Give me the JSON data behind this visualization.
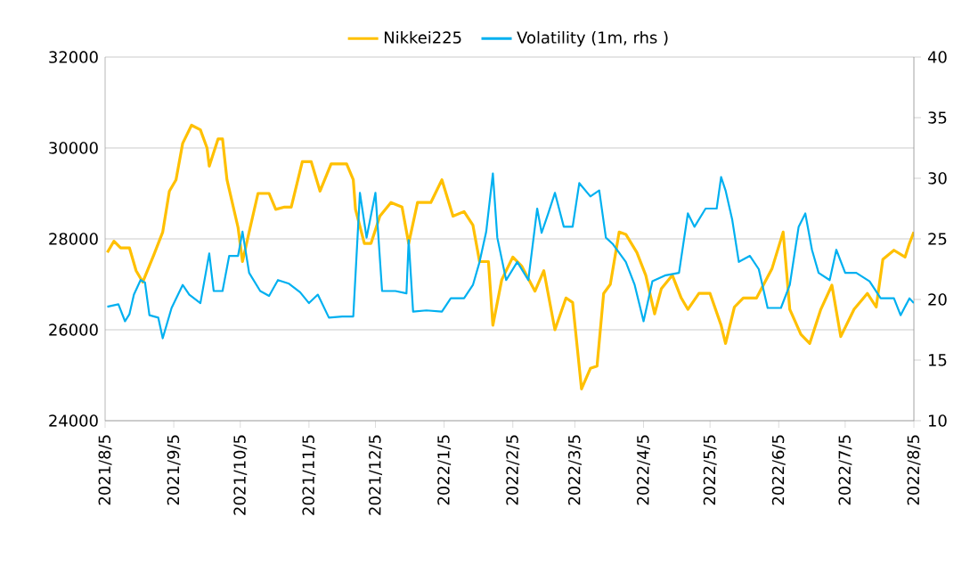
{
  "chart_data": {
    "type": "line",
    "xlim": [
      "2021-08-05",
      "2022-08-05"
    ],
    "xticks": [
      {
        "value": "2021-08-05",
        "label": "2021/8/5"
      },
      {
        "value": "2021-09-05",
        "label": "2021/9/5"
      },
      {
        "value": "2021-10-05",
        "label": "2021/10/5"
      },
      {
        "value": "2021-11-05",
        "label": "2021/11/5"
      },
      {
        "value": "2021-12-05",
        "label": "2021/12/5"
      },
      {
        "value": "2022-01-05",
        "label": "2022/1/5"
      },
      {
        "value": "2022-02-05",
        "label": "2022/2/5"
      },
      {
        "value": "2022-03-05",
        "label": "2022/3/5"
      },
      {
        "value": "2022-04-05",
        "label": "2022/4/5"
      },
      {
        "value": "2022-05-05",
        "label": "2022/5/5"
      },
      {
        "value": "2022-06-05",
        "label": "2022/6/5"
      },
      {
        "value": "2022-07-05",
        "label": "2022/7/5"
      },
      {
        "value": "2022-08-05",
        "label": "2022/8/5"
      }
    ],
    "ylim": [
      24000,
      32000
    ],
    "yticks": [
      24000,
      26000,
      28000,
      30000,
      32000
    ],
    "y2lim": [
      10,
      40
    ],
    "y2ticks": [
      10,
      15,
      20,
      25,
      30,
      35,
      40
    ],
    "grid": "y",
    "legend": "top",
    "line_style": "solid",
    "marker": "none",
    "series": [
      {
        "name": "Nikkei225",
        "color": "#ffc000",
        "axis": "y",
        "x": [
          "2021-08-06",
          "2021-08-09",
          "2021-08-12",
          "2021-08-16",
          "2021-08-19",
          "2021-08-22",
          "2021-08-27",
          "2021-08-31",
          "2021-09-03",
          "2021-09-06",
          "2021-09-09",
          "2021-09-13",
          "2021-09-17",
          "2021-09-20",
          "2021-09-21",
          "2021-09-25",
          "2021-09-27",
          "2021-09-29",
          "2021-10-04",
          "2021-10-06",
          "2021-10-09",
          "2021-10-13",
          "2021-10-18",
          "2021-10-21",
          "2021-10-25",
          "2021-10-28",
          "2021-11-02",
          "2021-11-06",
          "2021-11-10",
          "2021-11-15",
          "2021-11-22",
          "2021-11-25",
          "2021-11-26",
          "2021-11-30",
          "2021-12-03",
          "2021-12-07",
          "2021-12-12",
          "2021-12-17",
          "2021-12-20",
          "2021-12-24",
          "2021-12-30",
          "2022-01-04",
          "2022-01-09",
          "2022-01-14",
          "2022-01-18",
          "2022-01-21",
          "2022-01-25",
          "2022-01-27",
          "2022-01-31",
          "2022-02-05",
          "2022-02-09",
          "2022-02-15",
          "2022-02-19",
          "2022-02-24",
          "2022-03-01",
          "2022-03-04",
          "2022-03-08",
          "2022-03-12",
          "2022-03-15",
          "2022-03-18",
          "2022-03-21",
          "2022-03-25",
          "2022-03-28",
          "2022-04-02",
          "2022-04-06",
          "2022-04-10",
          "2022-04-13",
          "2022-04-18",
          "2022-04-22",
          "2022-04-25",
          "2022-04-30",
          "2022-05-05",
          "2022-05-10",
          "2022-05-12",
          "2022-05-16",
          "2022-05-20",
          "2022-05-26",
          "2022-06-02",
          "2022-06-07",
          "2022-06-10",
          "2022-06-15",
          "2022-06-19",
          "2022-06-24",
          "2022-06-29",
          "2022-07-03",
          "2022-07-09",
          "2022-07-15",
          "2022-07-19",
          "2022-07-22",
          "2022-07-27",
          "2022-08-01",
          "2022-08-03",
          "2022-08-05"
        ],
        "values": [
          27700,
          27950,
          27800,
          27800,
          27300,
          27050,
          27650,
          28150,
          29050,
          29300,
          30100,
          30500,
          30400,
          30000,
          29600,
          30200,
          30200,
          29300,
          28250,
          27500,
          28150,
          29000,
          29000,
          28650,
          28700,
          28700,
          29700,
          29700,
          29050,
          29650,
          29650,
          29300,
          28650,
          27900,
          27900,
          28500,
          28800,
          28700,
          27900,
          28800,
          28800,
          29300,
          28500,
          28600,
          28300,
          27500,
          27500,
          26100,
          27100,
          27600,
          27400,
          26850,
          27300,
          26000,
          26700,
          26600,
          24700,
          25150,
          25200,
          26800,
          27000,
          28150,
          28100,
          27700,
          27200,
          26350,
          26900,
          27200,
          26700,
          26450,
          26800,
          26800,
          26100,
          25700,
          26500,
          26700,
          26700,
          27350,
          28150,
          26450,
          25900,
          25700,
          26450,
          26980,
          25850,
          26450,
          26800,
          26500,
          27550,
          27750,
          27600,
          27900,
          28150
        ]
      },
      {
        "name": "Volatility (1m, rhs )",
        "color": "#00b0f0",
        "axis": "y2",
        "x": [
          "2021-08-06",
          "2021-08-11",
          "2021-08-14",
          "2021-08-16",
          "2021-08-18",
          "2021-08-21",
          "2021-08-23",
          "2021-08-25",
          "2021-08-29",
          "2021-08-31",
          "2021-09-04",
          "2021-09-09",
          "2021-09-12",
          "2021-09-17",
          "2021-09-21",
          "2021-09-23",
          "2021-09-27",
          "2021-09-30",
          "2021-10-04",
          "2021-10-06",
          "2021-10-09",
          "2021-10-14",
          "2021-10-18",
          "2021-10-22",
          "2021-10-27",
          "2021-11-01",
          "2021-11-05",
          "2021-11-09",
          "2021-11-14",
          "2021-11-20",
          "2021-11-25",
          "2021-11-28",
          "2021-12-01",
          "2021-12-05",
          "2021-12-08",
          "2021-12-14",
          "2021-12-19",
          "2021-12-20",
          "2021-12-22",
          "2021-12-28",
          "2022-01-04",
          "2022-01-08",
          "2022-01-14",
          "2022-01-18",
          "2022-01-21",
          "2022-01-24",
          "2022-01-27",
          "2022-01-29",
          "2022-02-02",
          "2022-02-07",
          "2022-02-12",
          "2022-02-16",
          "2022-02-18",
          "2022-02-21",
          "2022-02-24",
          "2022-02-28",
          "2022-03-04",
          "2022-03-07",
          "2022-03-12",
          "2022-03-16",
          "2022-03-19",
          "2022-03-22",
          "2022-03-28",
          "2022-04-01",
          "2022-04-05",
          "2022-04-09",
          "2022-04-15",
          "2022-04-21",
          "2022-04-25",
          "2022-04-28",
          "2022-05-03",
          "2022-05-08",
          "2022-05-10",
          "2022-05-12",
          "2022-05-15",
          "2022-05-18",
          "2022-05-23",
          "2022-05-27",
          "2022-05-31",
          "2022-06-06",
          "2022-06-10",
          "2022-06-14",
          "2022-06-17",
          "2022-06-20",
          "2022-06-23",
          "2022-06-28",
          "2022-07-01",
          "2022-07-05",
          "2022-07-10",
          "2022-07-16",
          "2022-07-21",
          "2022-07-27",
          "2022-07-30",
          "2022-08-03",
          "2022-08-05"
        ],
        "values": [
          19.4,
          19.6,
          18.2,
          18.8,
          20.4,
          21.6,
          21.4,
          18.7,
          18.5,
          16.8,
          19.3,
          21.2,
          20.4,
          19.7,
          23.8,
          20.7,
          20.7,
          23.6,
          23.6,
          25.6,
          22.2,
          20.7,
          20.3,
          21.6,
          21.3,
          20.6,
          19.7,
          20.4,
          18.5,
          18.6,
          18.6,
          28.8,
          25.1,
          28.8,
          20.7,
          20.7,
          20.5,
          24.9,
          19.0,
          19.1,
          19.0,
          20.1,
          20.1,
          21.2,
          23.1,
          25.6,
          30.4,
          25.1,
          21.6,
          23.1,
          21.6,
          27.5,
          25.5,
          27.1,
          28.8,
          26.0,
          26.0,
          29.6,
          28.5,
          29.0,
          25.1,
          24.6,
          23.1,
          21.2,
          18.2,
          21.5,
          22.0,
          22.2,
          27.1,
          26.0,
          27.5,
          27.5,
          30.1,
          29.0,
          26.6,
          23.1,
          23.6,
          22.5,
          19.3,
          19.3,
          21.2,
          26.0,
          27.1,
          24.1,
          22.2,
          21.6,
          24.1,
          22.2,
          22.2,
          21.5,
          20.1,
          20.1,
          18.7,
          20.1,
          19.7
        ]
      }
    ]
  }
}
